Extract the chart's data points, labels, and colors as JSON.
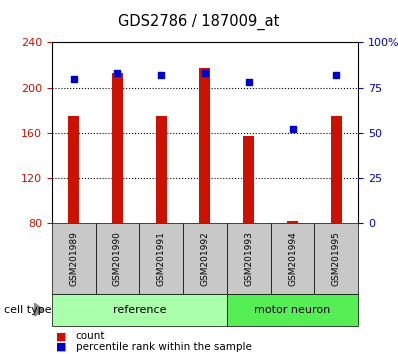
{
  "title": "GDS2786 / 187009_at",
  "samples": [
    "GSM201989",
    "GSM201990",
    "GSM201991",
    "GSM201992",
    "GSM201993",
    "GSM201994",
    "GSM201995"
  ],
  "counts": [
    175,
    213,
    175,
    217,
    157,
    82,
    175
  ],
  "percentiles": [
    80,
    83,
    82,
    83,
    78,
    52,
    82
  ],
  "groups": [
    "reference",
    "reference",
    "reference",
    "reference",
    "motor neuron",
    "motor neuron",
    "motor neuron"
  ],
  "bar_color": "#CC1100",
  "dot_color": "#0000CC",
  "left_yticks": [
    80,
    120,
    160,
    200,
    240
  ],
  "right_yticks": [
    0,
    25,
    50,
    75,
    100
  ],
  "ymin": 80,
  "ymax": 240,
  "pct_min": 0,
  "pct_max": 100,
  "label_bg_color": "#C8C8C8",
  "ref_color": "#AAFFAA",
  "motor_color": "#66EE66",
  "bar_width": 0.25
}
